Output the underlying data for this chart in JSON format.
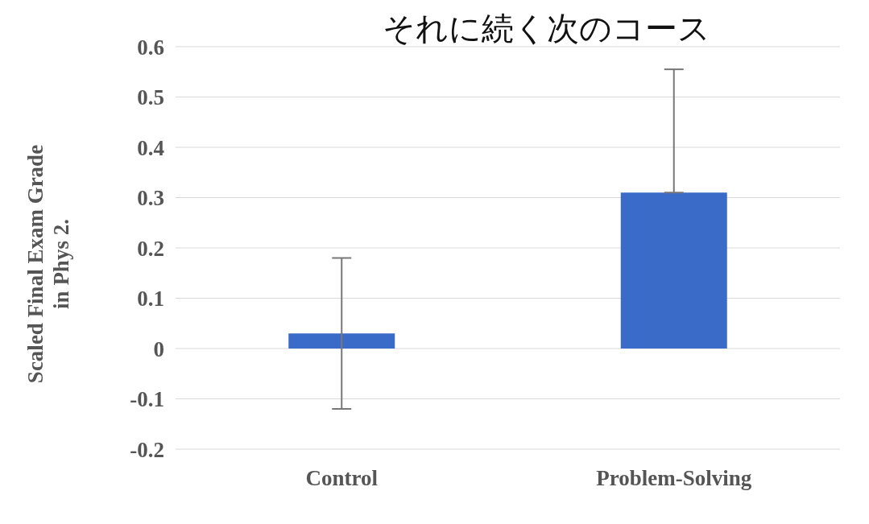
{
  "chart_data": {
    "type": "bar",
    "title": "それに続く次のコース",
    "ylabel": "Scaled Final Exam Grade\nin Phys 2.",
    "categories": [
      "Control",
      "Problem-Solving"
    ],
    "values": [
      0.03,
      0.31
    ],
    "color": "#3a6bc9",
    "errors": [
      [
        -0.12,
        0.18
      ],
      [
        0.31,
        0.555
      ]
    ],
    "ylim": [
      -0.2,
      0.6
    ],
    "yticks": [
      -0.2,
      -0.1,
      0,
      0.1,
      0.2,
      0.3,
      0.4,
      0.5,
      0.6
    ],
    "grid": "y"
  }
}
